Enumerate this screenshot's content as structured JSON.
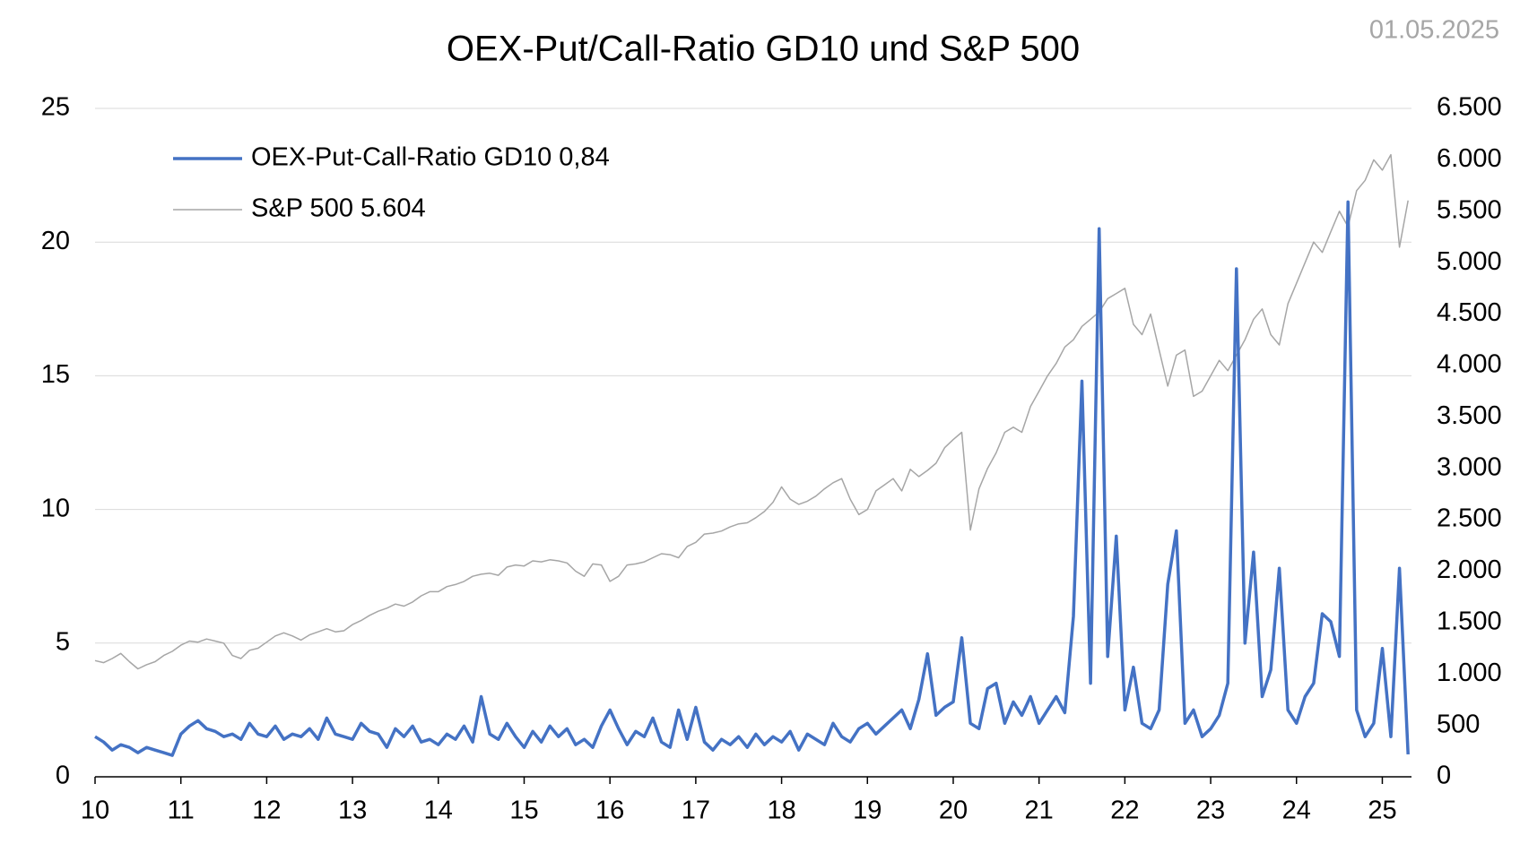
{
  "chart_data": {
    "type": "line",
    "title": "OEX-Put/Call-Ratio GD10 und S&P 500",
    "date": "01.05.2025",
    "x": [
      10.0,
      10.1,
      10.2,
      10.3,
      10.4,
      10.5,
      10.6,
      10.7,
      10.8,
      10.9,
      11.0,
      11.1,
      11.2,
      11.3,
      11.4,
      11.5,
      11.6,
      11.7,
      11.8,
      11.9,
      12.0,
      12.1,
      12.2,
      12.3,
      12.4,
      12.5,
      12.6,
      12.7,
      12.8,
      12.9,
      13.0,
      13.1,
      13.2,
      13.3,
      13.4,
      13.5,
      13.6,
      13.7,
      13.8,
      13.9,
      14.0,
      14.1,
      14.2,
      14.3,
      14.4,
      14.5,
      14.6,
      14.7,
      14.8,
      14.9,
      15.0,
      15.1,
      15.2,
      15.3,
      15.4,
      15.5,
      15.6,
      15.7,
      15.8,
      15.9,
      16.0,
      16.1,
      16.2,
      16.3,
      16.4,
      16.5,
      16.6,
      16.7,
      16.8,
      16.9,
      17.0,
      17.1,
      17.2,
      17.3,
      17.4,
      17.5,
      17.6,
      17.7,
      17.8,
      17.9,
      18.0,
      18.1,
      18.2,
      18.3,
      18.4,
      18.5,
      18.6,
      18.7,
      18.8,
      18.9,
      19.0,
      19.1,
      19.2,
      19.3,
      19.4,
      19.5,
      19.6,
      19.7,
      19.8,
      19.9,
      20.0,
      20.1,
      20.2,
      20.3,
      20.4,
      20.5,
      20.6,
      20.7,
      20.8,
      20.9,
      21.0,
      21.1,
      21.2,
      21.3,
      21.4,
      21.5,
      21.6,
      21.7,
      21.8,
      21.9,
      22.0,
      22.1,
      22.2,
      22.3,
      22.4,
      22.5,
      22.6,
      22.7,
      22.8,
      22.9,
      23.0,
      23.1,
      23.2,
      23.3,
      23.4,
      23.5,
      23.6,
      23.7,
      23.8,
      23.9,
      24.0,
      24.1,
      24.2,
      24.3,
      24.4,
      24.5,
      24.6,
      24.7,
      24.8,
      24.9,
      25.0,
      25.1,
      25.2,
      25.3
    ],
    "series": [
      {
        "name": "OEX-Put-Call-Ratio GD10 0,84",
        "color": "#4472c4",
        "width": 3.5,
        "values": [
          1.5,
          1.3,
          1.0,
          1.2,
          1.1,
          0.9,
          1.1,
          1.0,
          0.9,
          0.8,
          1.6,
          1.9,
          2.1,
          1.8,
          1.7,
          1.5,
          1.6,
          1.4,
          2.0,
          1.6,
          1.5,
          1.9,
          1.4,
          1.6,
          1.5,
          1.8,
          1.4,
          2.2,
          1.6,
          1.5,
          1.4,
          2.0,
          1.7,
          1.6,
          1.1,
          1.8,
          1.5,
          1.9,
          1.3,
          1.4,
          1.2,
          1.6,
          1.4,
          1.9,
          1.3,
          3.0,
          1.6,
          1.4,
          2.0,
          1.5,
          1.1,
          1.7,
          1.3,
          1.9,
          1.5,
          1.8,
          1.2,
          1.4,
          1.1,
          1.9,
          2.5,
          1.8,
          1.2,
          1.7,
          1.5,
          2.2,
          1.3,
          1.1,
          2.5,
          1.4,
          2.6,
          1.3,
          1.0,
          1.4,
          1.2,
          1.5,
          1.1,
          1.6,
          1.2,
          1.5,
          1.3,
          1.7,
          1.0,
          1.6,
          1.4,
          1.2,
          2.0,
          1.5,
          1.3,
          1.8,
          2.0,
          1.6,
          1.9,
          2.2,
          2.5,
          1.8,
          2.9,
          4.6,
          2.3,
          2.6,
          2.8,
          5.2,
          2.0,
          1.8,
          3.3,
          3.5,
          2.0,
          2.8,
          2.3,
          3.0,
          2.0,
          2.5,
          3.0,
          2.4,
          6.0,
          14.8,
          3.5,
          20.5,
          4.5,
          9.0,
          2.5,
          4.1,
          2.0,
          1.8,
          2.5,
          7.2,
          9.2,
          2.0,
          2.5,
          1.5,
          1.8,
          2.3,
          3.5,
          19.0,
          5.0,
          8.4,
          3.0,
          4.0,
          7.8,
          2.5,
          2.0,
          3.0,
          3.5,
          6.1,
          5.8,
          4.5,
          21.5,
          2.5,
          1.5,
          2.0,
          4.8,
          1.5,
          7.8,
          0.84
        ]
      },
      {
        "name": "S&P 500 5.604",
        "color": "#a6a6a6",
        "width": 1.5,
        "axis": "y2",
        "values": [
          1130,
          1110,
          1150,
          1200,
          1120,
          1050,
          1090,
          1120,
          1180,
          1220,
          1280,
          1320,
          1310,
          1340,
          1320,
          1300,
          1180,
          1150,
          1230,
          1250,
          1310,
          1370,
          1400,
          1370,
          1330,
          1380,
          1410,
          1440,
          1410,
          1420,
          1480,
          1520,
          1570,
          1610,
          1640,
          1680,
          1660,
          1700,
          1760,
          1800,
          1800,
          1850,
          1870,
          1900,
          1950,
          1970,
          1980,
          1960,
          2040,
          2060,
          2050,
          2100,
          2090,
          2110,
          2100,
          2080,
          2000,
          1950,
          2070,
          2060,
          1900,
          1950,
          2060,
          2070,
          2090,
          2130,
          2170,
          2160,
          2130,
          2240,
          2280,
          2360,
          2370,
          2390,
          2430,
          2460,
          2470,
          2520,
          2580,
          2670,
          2820,
          2700,
          2650,
          2680,
          2730,
          2800,
          2860,
          2900,
          2700,
          2550,
          2600,
          2780,
          2840,
          2900,
          2780,
          2990,
          2920,
          2980,
          3050,
          3200,
          3280,
          3350,
          2400,
          2800,
          3000,
          3150,
          3350,
          3400,
          3350,
          3600,
          3750,
          3900,
          4020,
          4180,
          4250,
          4380,
          4450,
          4520,
          4650,
          4700,
          4750,
          4400,
          4300,
          4500,
          4150,
          3800,
          4100,
          4150,
          3700,
          3750,
          3900,
          4050,
          3950,
          4100,
          4250,
          4450,
          4550,
          4300,
          4200,
          4600,
          4800,
          5000,
          5200,
          5100,
          5300,
          5500,
          5350,
          5700,
          5800,
          6000,
          5900,
          6050,
          5150,
          5604
        ]
      }
    ],
    "xlim": [
      10,
      25.34
    ],
    "xticks": [
      10,
      11,
      12,
      13,
      14,
      15,
      16,
      17,
      18,
      19,
      20,
      21,
      22,
      23,
      24,
      25
    ],
    "ylim": [
      0,
      25
    ],
    "yticks": [
      0,
      5,
      10,
      15,
      20,
      25
    ],
    "y2lim": [
      0,
      6500
    ],
    "y2ticks": [
      0,
      500,
      {
        "value": 1000,
        "label": "1.000"
      },
      {
        "value": 1500,
        "label": "1.500"
      },
      {
        "value": 2000,
        "label": "2.000"
      },
      {
        "value": 2500,
        "label": "2.500"
      },
      {
        "value": 3000,
        "label": "3.000"
      },
      {
        "value": 3500,
        "label": "3.500"
      },
      {
        "value": 4000,
        "label": "4.000"
      },
      {
        "value": 4500,
        "label": "4.500"
      },
      {
        "value": 5000,
        "label": "5.000"
      },
      {
        "value": 5500,
        "label": "5.500"
      },
      {
        "value": 6000,
        "label": "6.000"
      },
      {
        "value": 6500,
        "label": "6.500"
      }
    ],
    "grid": true,
    "legend": "top-left"
  }
}
